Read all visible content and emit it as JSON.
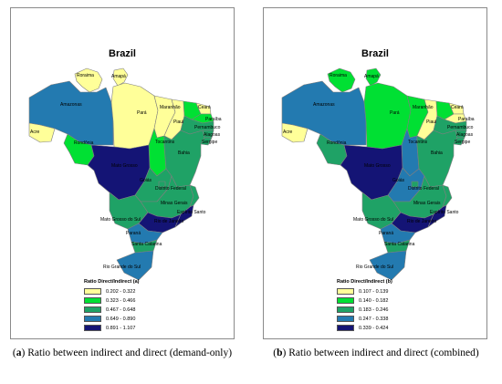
{
  "maps": [
    {
      "id": "a",
      "title": "Brazil",
      "legend": {
        "title": "Ratio Direct/Indirect (a)",
        "classes": [
          {
            "label": "0.202 - 0.322",
            "color": "#ffff99"
          },
          {
            "label": "0.323 - 0.466",
            "color": "#00e033"
          },
          {
            "label": "0.467 - 0.648",
            "color": "#1fa266"
          },
          {
            "label": "0.649 - 0.890",
            "color": "#237ab0"
          },
          {
            "label": "0.891 - 1.107",
            "color": "#141475"
          }
        ]
      },
      "state_class": {
        "roraima": 0,
        "amapa": 0,
        "amazonas": 3,
        "para": 0,
        "acre": 0,
        "rondonia": 1,
        "mato_grosso": 4,
        "maranhao": 0,
        "piaui": 0,
        "ceara": 1,
        "rio_grande_do_norte": 0,
        "paraiba": 1,
        "pernambuco": 2,
        "alagoas": 2,
        "sergipe": 2,
        "tocantins": 1,
        "bahia": 2,
        "goias": 2,
        "distrito_federal": 2,
        "minas_gerais": 2,
        "espirito_santo": 2,
        "mato_grosso_do_sul": 2,
        "sao_paulo": 4,
        "rio_de_janeiro": 4,
        "parana": 3,
        "santa_catarina": 2,
        "rio_grande_do_sul": 3
      },
      "caption": {
        "tag": "a",
        "text": " Ratio between indirect and direct (demand-only)"
      }
    },
    {
      "id": "b",
      "title": "Brazil",
      "legend": {
        "title": "Ratio Direct/Indirect (b)",
        "classes": [
          {
            "label": "0.107 - 0.139",
            "color": "#ffff99"
          },
          {
            "label": "0.140 - 0.182",
            "color": "#00e033"
          },
          {
            "label": "0.183 - 0.246",
            "color": "#1fa266"
          },
          {
            "label": "0.247 - 0.338",
            "color": "#237ab0"
          },
          {
            "label": "0.339 - 0.424",
            "color": "#141475"
          }
        ]
      },
      "state_class": {
        "roraima": 1,
        "amapa": 1,
        "amazonas": 3,
        "para": 1,
        "acre": 0,
        "rondonia": 2,
        "mato_grosso": 4,
        "maranhao": 1,
        "piaui": 0,
        "ceara": 1,
        "rio_grande_do_norte": 0,
        "paraiba": 0,
        "pernambuco": 2,
        "alagoas": 2,
        "sergipe": 2,
        "tocantins": 3,
        "bahia": 2,
        "goias": 3,
        "distrito_federal": 2,
        "minas_gerais": 2,
        "espirito_santo": 2,
        "mato_grosso_do_sul": 2,
        "sao_paulo": 4,
        "rio_de_janeiro": 4,
        "parana": 3,
        "santa_catarina": 2,
        "rio_grande_do_sul": 3
      },
      "caption": {
        "tag": "b",
        "text": " Ratio between indirect and direct (combined)"
      }
    }
  ],
  "state_labels": {
    "roraima": "Roraima",
    "amapa": "Amapá",
    "amazonas": "Amazonas",
    "para": "Pará",
    "acre": "Acre",
    "rondonia": "Rondônia",
    "mato_grosso": "Mato Grosso",
    "maranhao": "Maranhão",
    "piaui": "Piauí",
    "ceara": "Ceará",
    "paraiba": "Paraíba",
    "pernambuco": "Pernambuco",
    "alagoas": "Alagoas",
    "sergipe": "Sergipe",
    "tocantins": "Tocantins",
    "bahia": "Bahia",
    "goias": "Goiás",
    "distrito_federal": "Distrito Federal",
    "minas_gerais": "Minas Gerais",
    "espirito_santo": "Espírito Santo",
    "mato_grosso_do_sul": "Mato Grosso do Sul",
    "rio_de_janeiro": "Rio de Janeiro",
    "parana": "Paraná",
    "santa_catarina": "Santa Catarina",
    "rio_grande_do_sul": "Rio Grande do Sul"
  }
}
